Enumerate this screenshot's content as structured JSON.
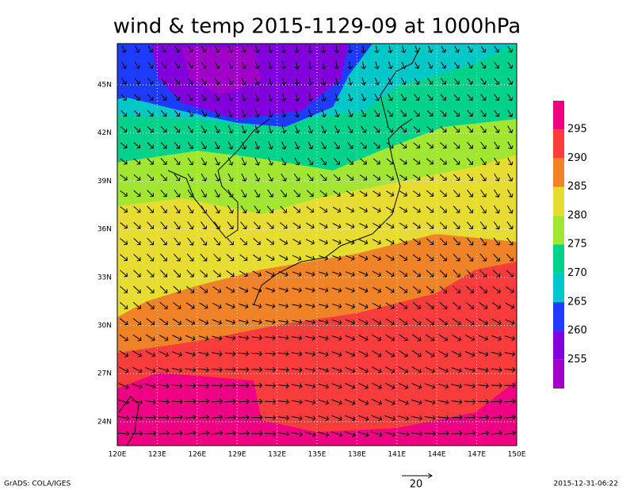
{
  "title": "wind & temp 2015-1129-09 at 1000hPa",
  "x_labels": [
    "120E",
    "123E",
    "126E",
    "129E",
    "132E",
    "135E",
    "138E",
    "141E",
    "144E",
    "147E",
    "150E"
  ],
  "y_labels": [
    "45N",
    "42N",
    "39N",
    "36N",
    "33N",
    "30N",
    "27N",
    "24N"
  ],
  "colorbar": {
    "labels": [
      "295",
      "290",
      "285",
      "280",
      "275",
      "270",
      "265",
      "260",
      "255"
    ],
    "colors": [
      "#f00082",
      "#fa3c3c",
      "#f08228",
      "#e6dc32",
      "#a0e632",
      "#00d28c",
      "#00c8c8",
      "#1e3cff",
      "#8200dc",
      "#a000c8"
    ]
  },
  "vector_scale": "20",
  "footer_left": "GrADS: COLA/IGES",
  "footer_right": "2015-12-31-06:22"
}
